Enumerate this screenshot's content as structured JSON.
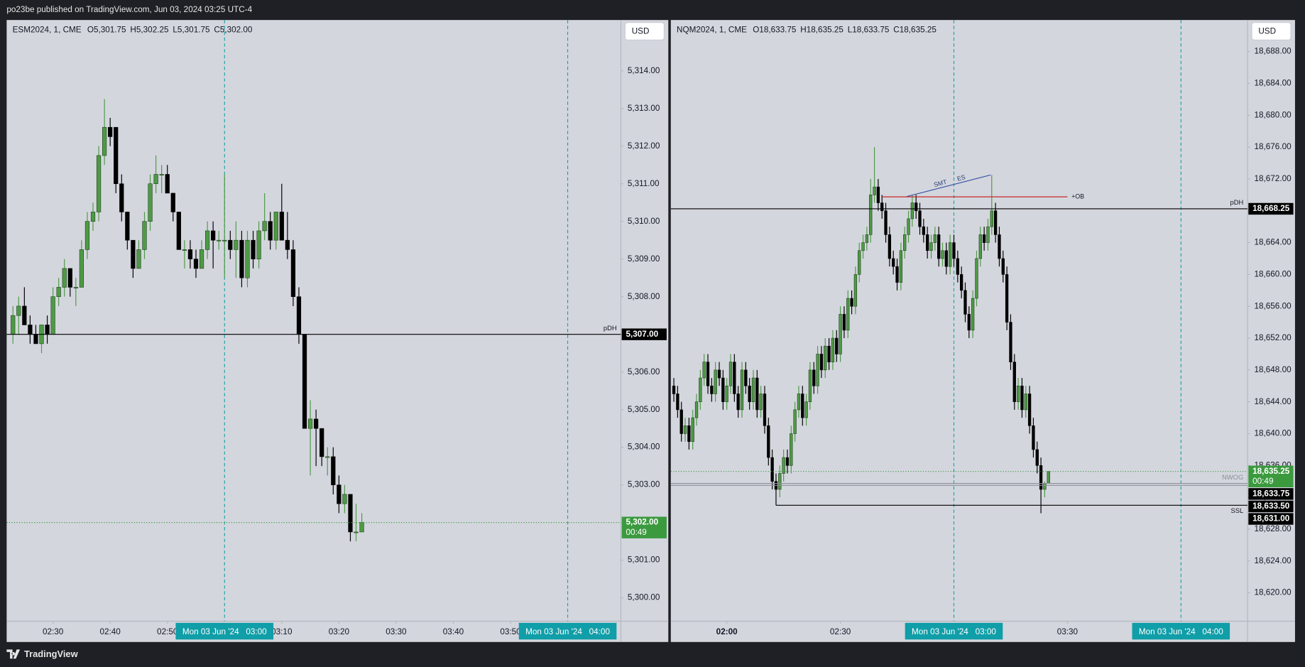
{
  "header": {
    "text": "po23be published on TradingView.com, Jun 03, 2024 03:25 UTC-4"
  },
  "footer": {
    "brand": "TradingView"
  },
  "chart_data": [
    {
      "type": "candlestick",
      "symbol": "ESM2024, 1, CME",
      "ohlc": [
        {
          "value": 5301.75,
          "label": "O5,301.75"
        },
        {
          "value": 5302.25,
          "label": "H5,302.25"
        },
        {
          "value": 5301.75,
          "label": "L5,301.75"
        },
        {
          "value": 5302,
          "label": "C5,302.00"
        }
      ],
      "currency": "USD",
      "up_color": "#4e9a45",
      "down_color": "#000000",
      "xlim": [
        141.9,
        249.3
      ],
      "ylim": [
        5299.38,
        5315.35
      ],
      "xticks": [
        {
          "value": 150,
          "label": "02:30"
        },
        {
          "value": 160,
          "label": "02:40"
        },
        {
          "value": 170,
          "label": "02:50"
        },
        {
          "value": 190,
          "label": "03:10"
        },
        {
          "value": 200,
          "label": "03:20"
        },
        {
          "value": 210,
          "label": "03:30"
        },
        {
          "value": 220,
          "label": "03:40"
        },
        {
          "value": 230,
          "label": "03:50"
        }
      ],
      "yticks": [
        {
          "value": 5300,
          "label": "5,300.00"
        },
        {
          "value": 5301,
          "label": "5,301.00"
        },
        {
          "value": 5302,
          "label": "5,302.00"
        },
        {
          "value": 5303,
          "label": "5,303.00"
        },
        {
          "value": 5304,
          "label": "5,304.00"
        },
        {
          "value": 5305,
          "label": "5,305.00"
        },
        {
          "value": 5306,
          "label": "5,306.00"
        },
        {
          "value": 5307,
          "label": "5,307.00"
        },
        {
          "value": 5308,
          "label": "5,308.00"
        },
        {
          "value": 5309,
          "label": "5,309.00"
        },
        {
          "value": 5310,
          "label": "5,310.00"
        },
        {
          "value": 5311,
          "label": "5,311.00"
        },
        {
          "value": 5312,
          "label": "5,312.00"
        },
        {
          "value": 5313,
          "label": "5,313.00"
        },
        {
          "value": 5314,
          "label": "5,314.00"
        }
      ],
      "grid": false,
      "vlines": [
        {
          "value": 180,
          "label": "Mon 03 Jun '24   03:00"
        },
        {
          "value": 240,
          "label": "Mon 03 Jun '24   04:00"
        }
      ],
      "levels": [
        {
          "value": 5307,
          "label": "5,307.00",
          "name": "pDH",
          "color": "#000000",
          "label_color": "#000000",
          "style": "solid"
        },
        {
          "value": 5302,
          "label": "5,302.00",
          "countdown": "00:49",
          "color": "#3b9a3e",
          "label_color": "#3b9a3e",
          "style": "dotted"
        }
      ],
      "x": [
        143,
        144,
        145,
        146,
        147,
        148,
        149,
        150,
        151,
        152,
        153,
        154,
        155,
        156,
        157,
        158,
        159,
        160,
        161,
        162,
        163,
        164,
        165,
        166,
        167,
        168,
        169,
        170,
        171,
        172,
        173,
        174,
        175,
        176,
        177,
        178,
        179,
        180,
        181,
        182,
        183,
        184,
        185,
        186,
        187,
        188,
        189,
        190,
        191,
        192,
        193,
        194,
        195,
        196,
        197,
        198,
        199,
        200,
        201,
        202,
        203,
        204
      ],
      "open": [
        5307,
        5307.5,
        5307.75,
        5307.25,
        5307,
        5306.75,
        5307.25,
        5307,
        5308,
        5308.25,
        5308.75,
        5308.25,
        5308.25,
        5309.25,
        5310,
        5310.25,
        5311.75,
        5312.5,
        5312.5,
        5311,
        5310.25,
        5309.5,
        5308.75,
        5309.25,
        5310,
        5311,
        5311.25,
        5311.25,
        5310.75,
        5310.25,
        5309.25,
        5309.25,
        5309,
        5308.75,
        5309.25,
        5309.75,
        5309.5,
        5309.5,
        5309.5,
        5309.25,
        5309.5,
        5308.5,
        5309.5,
        5309,
        5309.75,
        5310,
        5309.5,
        5310.25,
        5309.5,
        5309.25,
        5308,
        5307,
        5304.5,
        5304.75,
        5304.5,
        5303.75,
        5303.75,
        5303,
        5302.5,
        5302.75,
        5301.75,
        5301.75
      ],
      "high": [
        5307.75,
        5308,
        5308.25,
        5307.5,
        5307.25,
        5307.25,
        5307.5,
        5308.25,
        5308.5,
        5309,
        5308.75,
        5308.5,
        5309.5,
        5310.25,
        5310.5,
        5312,
        5313.25,
        5312.75,
        5312.5,
        5311.25,
        5310.25,
        5309.5,
        5309.5,
        5310.25,
        5311.25,
        5311.75,
        5311.5,
        5311.5,
        5310.75,
        5310.25,
        5309.5,
        5309.5,
        5309.25,
        5309.5,
        5310,
        5310,
        5309.75,
        5311.25,
        5309.75,
        5310,
        5309.75,
        5309.75,
        5309.75,
        5310,
        5310.75,
        5310.25,
        5310.25,
        5311,
        5310.25,
        5309.5,
        5308.25,
        5307,
        5305.25,
        5305,
        5304.5,
        5304,
        5304,
        5303.25,
        5303,
        5302.75,
        5302.5,
        5302.25
      ],
      "low": [
        5306.75,
        5307,
        5307.25,
        5306.75,
        5306.75,
        5306.5,
        5306.75,
        5307,
        5307.75,
        5308,
        5308,
        5307.75,
        5308.25,
        5309,
        5309.75,
        5310,
        5311.5,
        5312,
        5310.75,
        5310,
        5309.25,
        5308.5,
        5308.75,
        5309,
        5309.75,
        5310.75,
        5310.75,
        5310.75,
        5310,
        5309.25,
        5308.75,
        5308.75,
        5308.5,
        5308.75,
        5309,
        5308.75,
        5309.25,
        5308.5,
        5309,
        5308.5,
        5308.25,
        5308.25,
        5308.75,
        5308.75,
        5309.5,
        5309.25,
        5309.25,
        5309.5,
        5309,
        5307.75,
        5306.75,
        5304.5,
        5303.25,
        5303.5,
        5303.5,
        5303.25,
        5302.75,
        5302.25,
        5302.25,
        5301.5,
        5301.5,
        5301.75
      ],
      "close": [
        5307.5,
        5307.75,
        5307.25,
        5307,
        5306.75,
        5307.25,
        5307,
        5308,
        5308.25,
        5308.75,
        5308.25,
        5308.25,
        5309.25,
        5310,
        5310.25,
        5311.75,
        5312.5,
        5312.25,
        5311,
        5310.25,
        5309.5,
        5308.75,
        5309.25,
        5310,
        5311,
        5311.25,
        5311.25,
        5310.75,
        5310.25,
        5309.25,
        5309.25,
        5309,
        5308.75,
        5309.25,
        5309.75,
        5309.5,
        5309.5,
        5309.5,
        5309.25,
        5309.5,
        5308.5,
        5309.5,
        5309,
        5309.75,
        5310,
        5309.5,
        5310.25,
        5309.5,
        5309.25,
        5308,
        5307,
        5304.5,
        5304.75,
        5304.5,
        5303.75,
        5303.75,
        5303,
        5302.5,
        5302.75,
        5301.75,
        5301.75,
        5302
      ]
    },
    {
      "type": "candlestick",
      "symbol": "NQM2024, 1, CME",
      "ohlc": [
        {
          "value": 18633.75,
          "label": "O18,633.75"
        },
        {
          "value": 18635.25,
          "label": "H18,635.25"
        },
        {
          "value": 18633.75,
          "label": "L18,633.75"
        },
        {
          "value": 18635.25,
          "label": "C18,635.25"
        }
      ],
      "currency": "USD",
      "up_color": "#4e9a45",
      "down_color": "#000000",
      "xlim": [
        105.2,
        257.6
      ],
      "ylim": [
        18616.44,
        18691.97
      ],
      "xticks": [
        {
          "value": 120,
          "label": "02:00",
          "bold": true
        },
        {
          "value": 150,
          "label": "02:30"
        },
        {
          "value": 210,
          "label": "03:30"
        }
      ],
      "yticks": [
        {
          "value": 18620,
          "label": "18,620.00"
        },
        {
          "value": 18624,
          "label": "18,624.00"
        },
        {
          "value": 18628,
          "label": "18,628.00"
        },
        {
          "value": 18632,
          "label": "18,632.00"
        },
        {
          "value": 18636,
          "label": "18,636.00"
        },
        {
          "value": 18640,
          "label": "18,640.00"
        },
        {
          "value": 18644,
          "label": "18,644.00"
        },
        {
          "value": 18648,
          "label": "18,648.00"
        },
        {
          "value": 18652,
          "label": "18,652.00"
        },
        {
          "value": 18656,
          "label": "18,656.00"
        },
        {
          "value": 18660,
          "label": "18,660.00"
        },
        {
          "value": 18664,
          "label": "18,664.00"
        },
        {
          "value": 18668,
          "label": "18,668.00"
        },
        {
          "value": 18672,
          "label": "18,672.00"
        },
        {
          "value": 18676,
          "label": "18,676.00"
        },
        {
          "value": 18680,
          "label": "18,680.00"
        },
        {
          "value": 18684,
          "label": "18,684.00"
        },
        {
          "value": 18688,
          "label": "18,688.00"
        }
      ],
      "grid": false,
      "vlines": [
        {
          "value": 180,
          "label": "Mon 03 Jun '24   03:00"
        },
        {
          "value": 240,
          "label": "Mon 03 Jun '24   04:00"
        }
      ],
      "levels": [
        {
          "value": 18668.25,
          "label": "18,668.25",
          "name": "pDH",
          "color": "#000000",
          "label_color": "#000000",
          "style": "solid"
        },
        {
          "value": 18635.25,
          "label": "18,635.25",
          "countdown": "00:49",
          "color": "#3b9a3e",
          "label_color": "#3b9a3e",
          "style": "dotted"
        },
        {
          "value": 18633.75,
          "label": "18,633.75",
          "name": "NWOG",
          "color": "#8d9098",
          "label_color": "#000000",
          "style": "solid"
        },
        {
          "value": 18633.5,
          "label": "18,633.50",
          "color": "#8d9098",
          "label_color": "#000000",
          "style": "solid"
        },
        {
          "value": 18631,
          "label": "18,631.00",
          "name": "SSL",
          "from": 133,
          "color": "#000000",
          "label_color": "#000000",
          "style": "solid",
          "name_side": "below"
        }
      ],
      "drawings": [
        {
          "kind": "trendline",
          "x": [
            167.6,
            189.7
          ],
          "y": [
            18669.8,
            18672.5
          ],
          "color": "#3a55a4",
          "labels": [
            "SMT",
            "ES"
          ]
        },
        {
          "kind": "ray",
          "x": [
            161,
            210
          ],
          "y": [
            18669.75,
            18669.75
          ],
          "color": "#c62828",
          "labels": [
            "+OB"
          ]
        }
      ],
      "x": [
        106,
        107,
        108,
        109,
        110,
        111,
        112,
        113,
        114,
        115,
        116,
        117,
        118,
        119,
        120,
        121,
        122,
        123,
        124,
        125,
        126,
        127,
        128,
        129,
        130,
        131,
        132,
        133,
        134,
        135,
        136,
        137,
        138,
        139,
        140,
        141,
        142,
        143,
        144,
        145,
        146,
        147,
        148,
        149,
        150,
        151,
        152,
        153,
        154,
        155,
        156,
        157,
        158,
        159,
        160,
        161,
        162,
        163,
        164,
        165,
        166,
        167,
        168,
        169,
        170,
        171,
        172,
        173,
        174,
        175,
        176,
        177,
        178,
        179,
        180,
        181,
        182,
        183,
        184,
        185,
        186,
        187,
        188,
        189,
        190,
        191,
        192,
        193,
        194,
        195,
        196,
        197,
        198,
        199,
        200,
        201,
        202,
        203,
        204,
        205
      ],
      "open": [
        18646,
        18645,
        18643,
        18640,
        18641,
        18639,
        18642,
        18644,
        18647,
        18649,
        18646,
        18645,
        18648,
        18647,
        18644,
        18646,
        18649,
        18645,
        18643,
        18648,
        18646,
        18644,
        18647,
        18643,
        18645,
        18641,
        18637,
        18634,
        18633,
        18635,
        18637,
        18636,
        18640,
        18643,
        18645,
        18642,
        18644,
        18648,
        18646,
        18650,
        18648,
        18651,
        18649,
        18652,
        18650,
        18655,
        18653,
        18657,
        18656,
        18660,
        18663,
        18664,
        18665,
        18670,
        18671,
        18669,
        18668,
        18665,
        18662,
        18661,
        18659,
        18663,
        18665,
        18667,
        18669,
        18668,
        18666,
        18665,
        18663,
        18664,
        18665,
        18662,
        18663,
        18661,
        18664,
        18662,
        18660,
        18658,
        18655,
        18653,
        18657,
        18662,
        18665,
        18664,
        18666,
        18668,
        18665,
        18662,
        18660,
        18654,
        18649,
        18644,
        18646,
        18643,
        18645,
        18641,
        18638,
        18636,
        18633,
        18633.75
      ],
      "high": [
        18647,
        18646,
        18644,
        18642,
        18642,
        18643,
        18645,
        18648,
        18650,
        18650,
        18647,
        18649,
        18649,
        18648,
        18647,
        18650,
        18650,
        18646,
        18649,
        18649,
        18647,
        18648,
        18648,
        18646,
        18646,
        18642,
        18638,
        18635,
        18636,
        18638,
        18638,
        18641,
        18644,
        18646,
        18646,
        18645,
        18649,
        18649,
        18651,
        18651,
        18652,
        18652,
        18653,
        18653,
        18656,
        18656,
        18658,
        18658,
        18661,
        18664,
        18665,
        18666,
        18672,
        18676,
        18672,
        18670,
        18669,
        18666,
        18663,
        18662,
        18664,
        18666,
        18668,
        18670,
        18670,
        18669,
        18667,
        18666,
        18665,
        18666,
        18666,
        18664,
        18664,
        18665,
        18665,
        18663,
        18661,
        18659,
        18656,
        18658,
        18663,
        18666,
        18666,
        18667,
        18672.5,
        18669,
        18666,
        18663,
        18661,
        18655,
        18650,
        18647,
        18647,
        18646,
        18646,
        18642,
        18639,
        18637,
        18634,
        18635.25
      ],
      "low": [
        18644,
        18642,
        18639,
        18639,
        18638,
        18638,
        18641,
        18643,
        18646,
        18645,
        18644,
        18644,
        18646,
        18643,
        18643,
        18645,
        18644,
        18642,
        18642,
        18645,
        18643,
        18643,
        18642,
        18642,
        18640,
        18636,
        18633,
        18631,
        18632,
        18634,
        18635,
        18635,
        18639,
        18642,
        18641,
        18641,
        18643,
        18645,
        18645,
        18647,
        18647,
        18648,
        18648,
        18649,
        18649,
        18652,
        18652,
        18655,
        18655,
        18659,
        18662,
        18663,
        18664,
        18669,
        18668,
        18667,
        18664,
        18661,
        18660,
        18658,
        18658,
        18662,
        18664,
        18666,
        18667,
        18665,
        18664,
        18662,
        18662,
        18663,
        18661,
        18661,
        18660,
        18660,
        18661,
        18659,
        18657,
        18654,
        18652,
        18652,
        18656,
        18661,
        18663,
        18663,
        18665,
        18664,
        18661,
        18659,
        18653,
        18648,
        18643,
        18643,
        18642,
        18642,
        18640,
        18637,
        18635,
        18630,
        18632,
        18633.75
      ],
      "close": [
        18645,
        18643,
        18640,
        18641,
        18639,
        18642,
        18644,
        18647,
        18649,
        18646,
        18645,
        18648,
        18647,
        18644,
        18646,
        18649,
        18645,
        18643,
        18648,
        18646,
        18644,
        18647,
        18643,
        18645,
        18641,
        18637,
        18634,
        18633,
        18635,
        18637,
        18636,
        18640,
        18643,
        18645,
        18642,
        18644,
        18648,
        18646,
        18650,
        18648,
        18651,
        18649,
        18652,
        18650,
        18655,
        18653,
        18657,
        18656,
        18660,
        18663,
        18664,
        18665,
        18670,
        18671,
        18669,
        18668,
        18665,
        18662,
        18661,
        18659,
        18663,
        18665,
        18667,
        18669,
        18668,
        18666,
        18665,
        18663,
        18664,
        18665,
        18662,
        18663,
        18661,
        18664,
        18662,
        18660,
        18658,
        18655,
        18653,
        18657,
        18662,
        18665,
        18664,
        18666,
        18668,
        18665,
        18662,
        18660,
        18654,
        18649,
        18644,
        18646,
        18643,
        18645,
        18641,
        18638,
        18636,
        18633,
        18633.75,
        18635.25
      ]
    }
  ]
}
